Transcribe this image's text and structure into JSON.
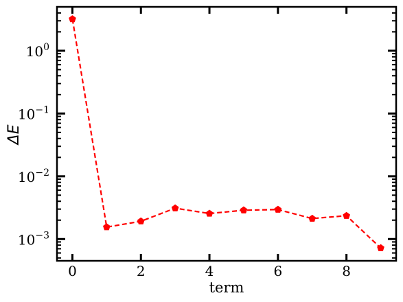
{
  "chart_data": {
    "type": "line",
    "title": "",
    "xlabel": "term",
    "ylabel": "ΔE",
    "y_scale": "log",
    "xlim": [
      -0.45,
      9.45
    ],
    "ylim": [
      0.00045,
      5.0
    ],
    "grid": false,
    "legend": "none",
    "x_ticks": [
      0,
      2,
      4,
      6,
      8
    ],
    "x_tick_labels": [
      "0",
      "2",
      "4",
      "6",
      "8"
    ],
    "y_ticks": [
      0.001,
      0.01,
      0.1,
      1
    ],
    "y_tick_labels": [
      {
        "base": "10",
        "exp": "−3"
      },
      {
        "base": "10",
        "exp": "−2"
      },
      {
        "base": "10",
        "exp": "−1"
      },
      {
        "base": "10",
        "exp": "0"
      }
    ],
    "series": [
      {
        "color": "#ff0000",
        "line_style": "dashed",
        "marker": "pentagon",
        "x": [
          0,
          1,
          2,
          3,
          4,
          5,
          6,
          7,
          8,
          9
        ],
        "y": [
          3.2,
          0.00155,
          0.00192,
          0.0031,
          0.00255,
          0.00288,
          0.00295,
          0.00212,
          0.00235,
          0.00072
        ]
      }
    ]
  }
}
